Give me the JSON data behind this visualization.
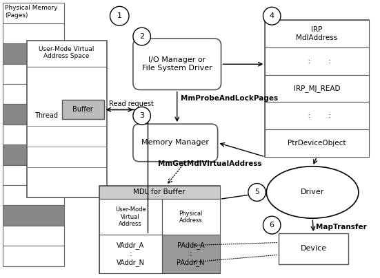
{
  "bg_color": "#ffffff",
  "gray_rows": [
    2,
    5,
    7,
    10
  ],
  "mdl_col1_label": "User-Mode\nVirtual\nAddress",
  "mdl_col2_label": "Physical\nAddress",
  "mdl_vaddr_a": "VAddr_A",
  "mdl_vaddr_n": "VAddr_N",
  "mdl_paddr_a": "PAddr_A",
  "mdl_paddr_n": "PAddr_N",
  "label_read_request": "Read request",
  "label_mmprobe": "MmProbeAndLockPages",
  "label_mmget": "MmGetMdlVirtualAddress",
  "label_maptransfer": "MapTransfer",
  "label_phys_mem": "Physical Memory\n(Pages)",
  "label_vas": "User-Mode Virtual\nAddress Space",
  "label_thread": "Thread",
  "label_buffer": "Buffer",
  "label_io": "I/O Manager or\nFile System Driver",
  "label_mm": "Memory Manager",
  "label_mdl": "MDL for Buffer",
  "label_irp": "IRP\nMdlAddress",
  "label_driver": "Driver",
  "label_device": "Device",
  "irp_row1": "  :        :",
  "irp_row2": "IRP_MJ_READ",
  "irp_row3": "  :        :",
  "irp_row4": "PtrDeviceObject"
}
